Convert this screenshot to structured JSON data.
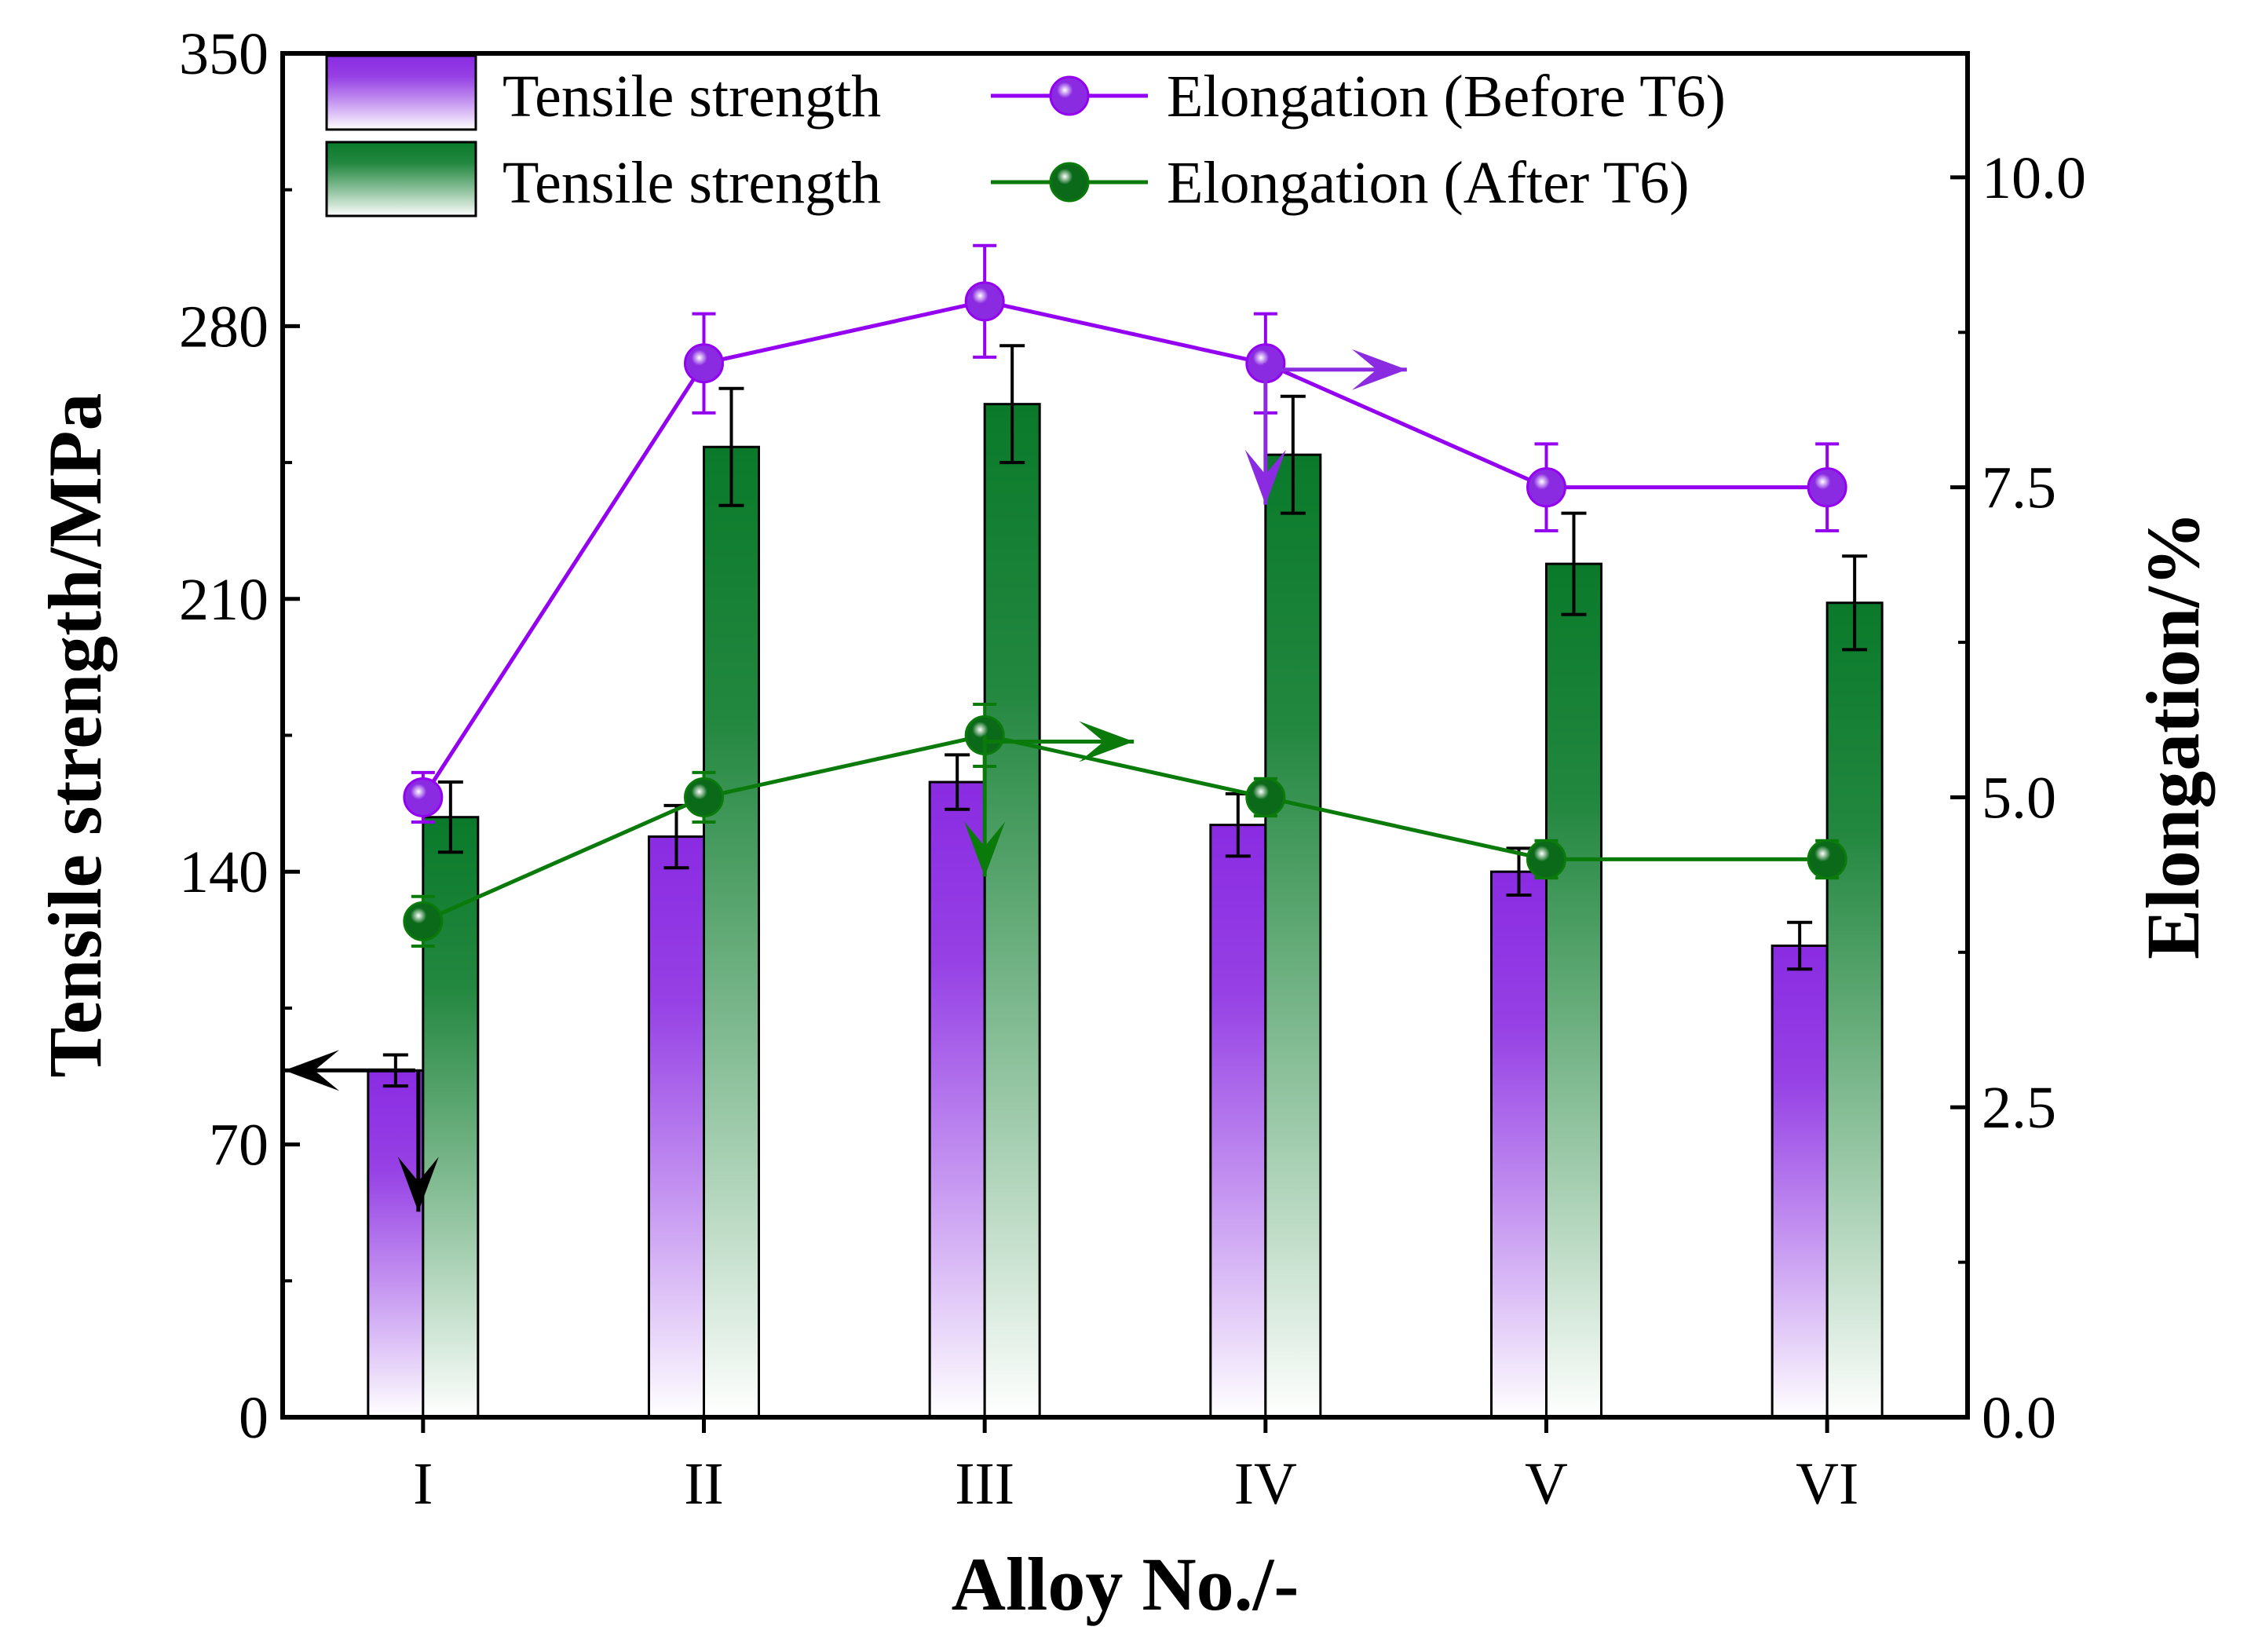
{
  "chart_data": {
    "type": "bar+line",
    "categories": [
      "I",
      "II",
      "III",
      "IV",
      "V",
      "VI"
    ],
    "xlabel": "Alloy No./-",
    "ylabel_left": "Tensile strength/MPa",
    "ylabel_right": "Elongation/%",
    "ylim_left": [
      0,
      350
    ],
    "ylim_right": [
      0,
      11
    ],
    "left_ticks": [
      "0",
      "70",
      "140",
      "210",
      "280",
      "350"
    ],
    "left_tick_values": [
      0,
      70,
      140,
      210,
      280,
      350
    ],
    "right_ticks": [
      "0.0",
      "2.5",
      "5.0",
      "7.5",
      "10.0"
    ],
    "right_tick_values": [
      0,
      2.5,
      5,
      7.5,
      10
    ],
    "bar_series": [
      {
        "name": "Tensile strength",
        "condition": "Before T6",
        "values": [
          89,
          149,
          163,
          152,
          140,
          121
        ],
        "errors": [
          4,
          8,
          7,
          8,
          6,
          6
        ],
        "color_top": "#8a2be2",
        "color_bottom": "#ffffff"
      },
      {
        "name": "Tensile strength",
        "condition": "After T6",
        "values": [
          154,
          249,
          260,
          247,
          219,
          209
        ],
        "errors": [
          9,
          15,
          15,
          15,
          13,
          12
        ],
        "color_top": "#0a7a2a",
        "color_bottom": "#ffffff"
      }
    ],
    "line_series": [
      {
        "name": "Elongation (Before T6)",
        "values": [
          5.0,
          8.5,
          9.0,
          8.5,
          7.5,
          7.5
        ],
        "errors": [
          0.2,
          0.4,
          0.45,
          0.4,
          0.35,
          0.35
        ],
        "color": "#9400f0",
        "marker": "#8a2be2"
      },
      {
        "name": "Elongation (After T6)",
        "values": [
          4.0,
          5.0,
          5.5,
          5.0,
          4.5,
          4.5
        ],
        "errors": [
          0.2,
          0.2,
          0.25,
          0.15,
          0.15,
          0.15
        ],
        "color": "#0a7a0a",
        "marker": "#0a6a1a"
      }
    ],
    "legend": {
      "placement": "top-left",
      "entries": [
        "Tensile strength",
        "Elongation (Before T6)",
        "Tensile strength",
        "Elongation (After T6)"
      ]
    },
    "annotations": [
      {
        "kind": "arrow-pair",
        "color": "#000000",
        "points_to": "left axis",
        "category": "I"
      },
      {
        "kind": "arrow-pair",
        "color": "#8a2be2",
        "points_to": "right axis",
        "category": "IV"
      },
      {
        "kind": "arrow-pair",
        "color": "#0a7a0a",
        "points_to": "right axis",
        "category": "III"
      }
    ]
  }
}
